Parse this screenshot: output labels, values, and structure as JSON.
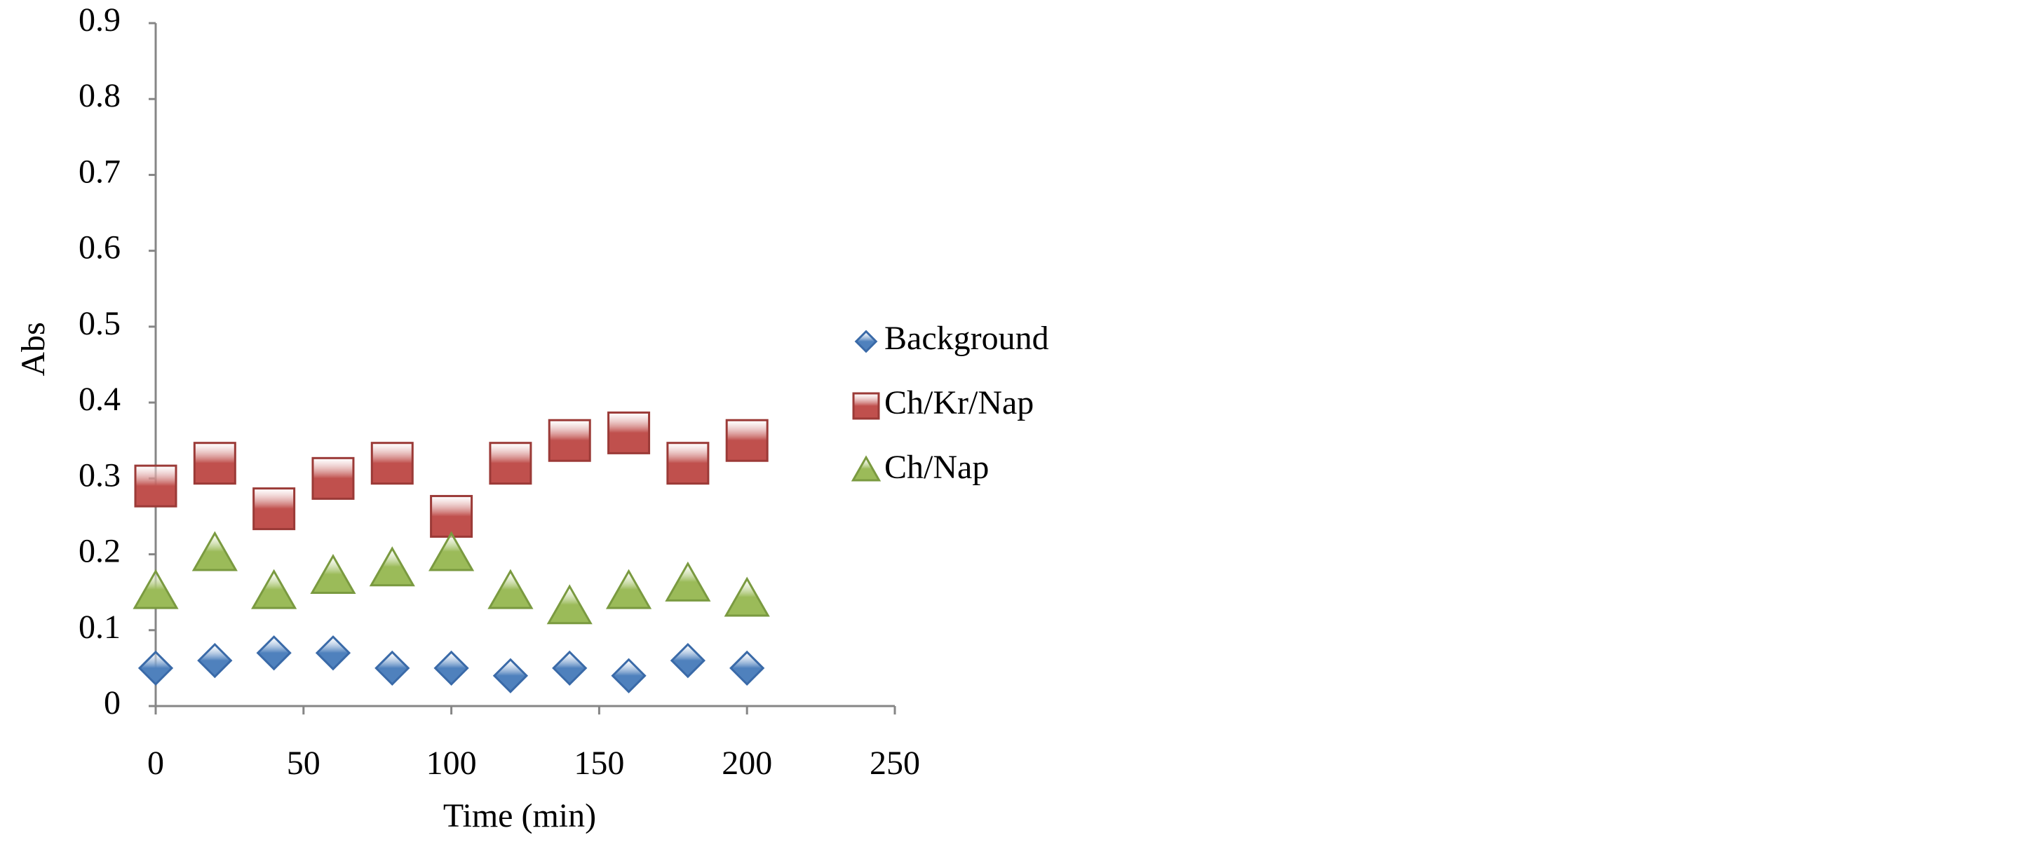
{
  "chart_data": {
    "type": "scatter",
    "xlabel": "Time (min)",
    "ylabel": "Abs",
    "x": [
      0,
      20,
      40,
      60,
      80,
      100,
      120,
      140,
      160,
      180,
      200
    ],
    "series": [
      {
        "name": "Background",
        "color": "#4f81bd",
        "marker": "diamond",
        "values": [
          0.05,
          0.06,
          0.07,
          0.07,
          0.05,
          0.05,
          0.04,
          0.05,
          0.04,
          0.06,
          0.05
        ]
      },
      {
        "name": "Ch/Kr/Nap",
        "color": "#c0504d",
        "marker": "square",
        "values": [
          0.29,
          0.32,
          0.26,
          0.3,
          0.32,
          0.25,
          0.32,
          0.35,
          0.36,
          0.32,
          0.35
        ]
      },
      {
        "name": "Ch/Nap",
        "color": "#9bbb59",
        "marker": "triangle",
        "values": [
          0.15,
          0.2,
          0.15,
          0.17,
          0.18,
          0.2,
          0.15,
          0.13,
          0.15,
          0.16,
          0.14
        ]
      }
    ],
    "xlim": [
      0,
      250
    ],
    "xticks": [
      0,
      50,
      100,
      150,
      200,
      250
    ],
    "ylim": [
      0,
      0.9
    ],
    "yticks": [
      0,
      0.1,
      0.2,
      0.3,
      0.4,
      0.5,
      0.6,
      0.7,
      0.8,
      0.9
    ],
    "grid": false,
    "legend": "right"
  }
}
